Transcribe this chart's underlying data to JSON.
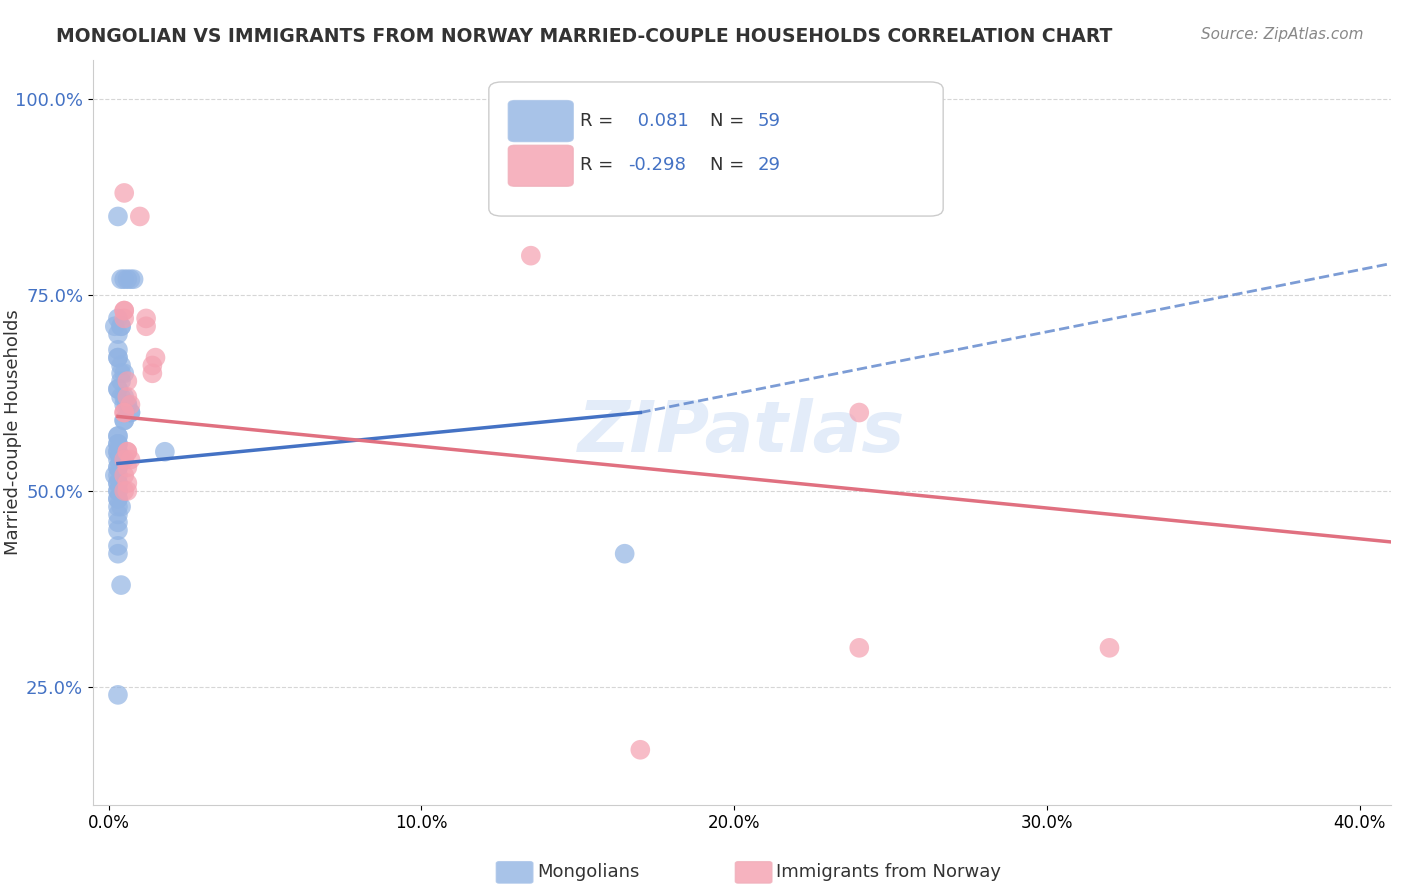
{
  "title": "MONGOLIAN VS IMMIGRANTS FROM NORWAY MARRIED-COUPLE HOUSEHOLDS CORRELATION CHART",
  "source": "Source: ZipAtlas.com",
  "ylabel": "Married-couple Households",
  "ytick_values": [
    0.25,
    0.5,
    0.75,
    1.0
  ],
  "xtick_values": [
    0.0,
    0.1,
    0.2,
    0.3,
    0.4
  ],
  "ylim": [
    0.1,
    1.05
  ],
  "xlim": [
    -0.005,
    0.41
  ],
  "legend_blue_r": "0.081",
  "legend_blue_n": "59",
  "legend_pink_r": "-0.298",
  "legend_pink_n": "29",
  "blue_color": "#92b4e3",
  "pink_color": "#f4a0b0",
  "line_blue_color": "#4472c4",
  "line_pink_color": "#e07080",
  "watermark": "ZIPatlas",
  "blue_line_solid": [
    [
      0.003,
      0.535
    ],
    [
      0.17,
      0.6
    ]
  ],
  "blue_line_dashed": [
    [
      0.17,
      0.6
    ],
    [
      0.41,
      0.79
    ]
  ],
  "pink_line": [
    [
      0.003,
      0.595
    ],
    [
      0.41,
      0.435
    ]
  ],
  "mongolian_x": [
    0.003,
    0.005,
    0.004,
    0.006,
    0.007,
    0.008,
    0.004,
    0.003,
    0.002,
    0.004,
    0.003,
    0.003,
    0.003,
    0.003,
    0.004,
    0.005,
    0.004,
    0.004,
    0.003,
    0.003,
    0.004,
    0.005,
    0.005,
    0.006,
    0.006,
    0.007,
    0.007,
    0.005,
    0.005,
    0.003,
    0.003,
    0.003,
    0.003,
    0.003,
    0.003,
    0.002,
    0.003,
    0.004,
    0.003,
    0.003,
    0.003,
    0.002,
    0.003,
    0.003,
    0.003,
    0.003,
    0.003,
    0.003,
    0.003,
    0.018,
    0.004,
    0.003,
    0.003,
    0.003,
    0.003,
    0.003,
    0.165,
    0.004,
    0.003
  ],
  "mongolian_y": [
    0.85,
    0.77,
    0.77,
    0.77,
    0.77,
    0.77,
    0.71,
    0.72,
    0.71,
    0.71,
    0.7,
    0.68,
    0.67,
    0.67,
    0.66,
    0.65,
    0.65,
    0.64,
    0.63,
    0.63,
    0.62,
    0.62,
    0.61,
    0.61,
    0.61,
    0.6,
    0.6,
    0.59,
    0.59,
    0.57,
    0.57,
    0.56,
    0.56,
    0.55,
    0.55,
    0.55,
    0.54,
    0.54,
    0.53,
    0.53,
    0.52,
    0.52,
    0.51,
    0.51,
    0.5,
    0.5,
    0.49,
    0.49,
    0.48,
    0.55,
    0.48,
    0.47,
    0.46,
    0.45,
    0.43,
    0.42,
    0.42,
    0.38,
    0.24
  ],
  "norway_x": [
    0.005,
    0.01,
    0.135,
    0.005,
    0.005,
    0.005,
    0.012,
    0.012,
    0.015,
    0.014,
    0.014,
    0.006,
    0.006,
    0.007,
    0.005,
    0.005,
    0.006,
    0.006,
    0.007,
    0.005,
    0.006,
    0.005,
    0.006,
    0.006,
    0.005,
    0.24,
    0.24,
    0.32,
    0.17
  ],
  "norway_y": [
    0.88,
    0.85,
    0.8,
    0.73,
    0.73,
    0.72,
    0.72,
    0.71,
    0.67,
    0.66,
    0.65,
    0.64,
    0.62,
    0.61,
    0.6,
    0.6,
    0.55,
    0.55,
    0.54,
    0.54,
    0.53,
    0.52,
    0.51,
    0.5,
    0.5,
    0.6,
    0.3,
    0.3,
    0.17
  ]
}
